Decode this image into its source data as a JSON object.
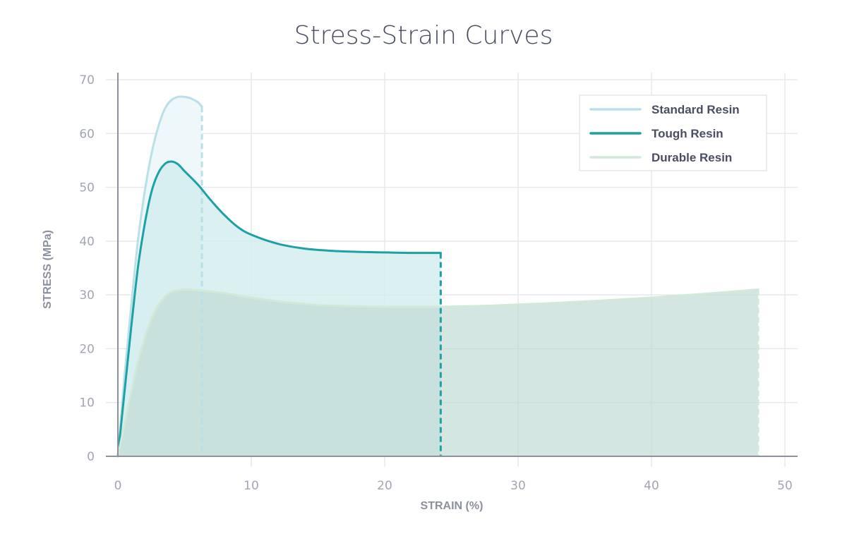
{
  "chart_data": {
    "type": "area",
    "title": "Stress-Strain Curves",
    "xlabel": "STRAIN (%)",
    "ylabel": "STRESS (MPa)",
    "xlim": [
      0,
      50
    ],
    "ylim": [
      0,
      70
    ],
    "x_ticks": [
      0,
      10,
      20,
      30,
      40,
      50
    ],
    "y_ticks": [
      0,
      10,
      20,
      30,
      40,
      50,
      60,
      70
    ],
    "grid": true,
    "legend": "top-right",
    "series": [
      {
        "name": "Standard Resin",
        "color": "#b9e0e7",
        "fill": "#eef8fb",
        "break_at": 6.3,
        "points": [
          [
            0,
            0
          ],
          [
            0.5,
            15
          ],
          [
            1,
            28
          ],
          [
            1.5,
            40
          ],
          [
            2,
            49
          ],
          [
            2.5,
            56
          ],
          [
            3,
            61
          ],
          [
            3.5,
            64.5
          ],
          [
            4,
            66.2
          ],
          [
            4.5,
            66.8
          ],
          [
            5,
            66.8
          ],
          [
            5.5,
            66.5
          ],
          [
            6,
            65.8
          ],
          [
            6.3,
            65
          ]
        ]
      },
      {
        "name": "Tough Resin",
        "color": "#1ba1a6",
        "fill": "#d3edef",
        "break_at": 24.2,
        "points": [
          [
            0,
            0
          ],
          [
            0.5,
            12
          ],
          [
            1,
            24
          ],
          [
            1.5,
            35
          ],
          [
            2,
            43
          ],
          [
            2.5,
            49
          ],
          [
            3,
            52.5
          ],
          [
            3.5,
            54.3
          ],
          [
            4,
            54.8
          ],
          [
            4.5,
            54.3
          ],
          [
            5,
            53
          ],
          [
            6,
            50.5
          ],
          [
            7,
            47.5
          ],
          [
            8,
            44.8
          ],
          [
            9,
            42.6
          ],
          [
            10,
            41.2
          ],
          [
            12,
            39.5
          ],
          [
            14,
            38.6
          ],
          [
            16,
            38.2
          ],
          [
            18,
            38.0
          ],
          [
            20,
            37.9
          ],
          [
            22,
            37.8
          ],
          [
            24.2,
            37.8
          ]
        ]
      },
      {
        "name": "Durable Resin",
        "color": "#d1e9d9",
        "fill": "#bfdad3",
        "break_at": 48,
        "points": [
          [
            0,
            0
          ],
          [
            0.5,
            6
          ],
          [
            1,
            12
          ],
          [
            1.5,
            17.5
          ],
          [
            2,
            22
          ],
          [
            2.5,
            25.5
          ],
          [
            3,
            28
          ],
          [
            3.5,
            29.6
          ],
          [
            4,
            30.5
          ],
          [
            4.5,
            30.9
          ],
          [
            5,
            31
          ],
          [
            6,
            30.9
          ],
          [
            8,
            30.3
          ],
          [
            10,
            29.5
          ],
          [
            12,
            28.8
          ],
          [
            14,
            28.3
          ],
          [
            16,
            28.0
          ],
          [
            20,
            27.8
          ],
          [
            24,
            27.8
          ],
          [
            28,
            28.0
          ],
          [
            32,
            28.4
          ],
          [
            36,
            28.9
          ],
          [
            40,
            29.5
          ],
          [
            44,
            30.2
          ],
          [
            48,
            31.0
          ]
        ]
      }
    ]
  }
}
